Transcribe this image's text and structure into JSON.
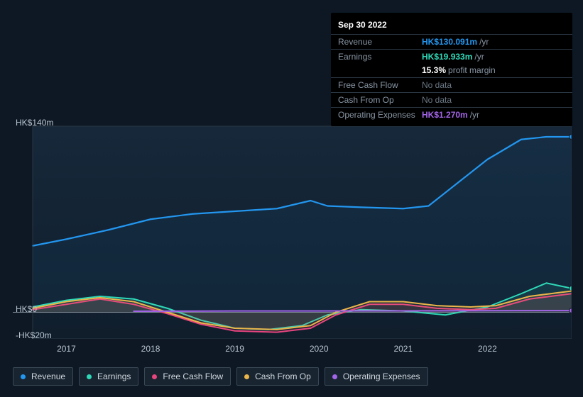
{
  "tooltip": {
    "date": "Sep 30 2022",
    "rows": [
      {
        "label": "Revenue",
        "value": "HK$130.091m",
        "unit": "/yr",
        "color": "#2396ef",
        "nodata": false
      },
      {
        "label": "Earnings",
        "value": "HK$19.933m",
        "unit": "/yr",
        "color": "#2fd9b8",
        "nodata": false,
        "sub_pct": "15.3%",
        "sub_txt": "profit margin"
      },
      {
        "label": "Free Cash Flow",
        "value": "No data",
        "unit": "",
        "color": "#8896a4",
        "nodata": true
      },
      {
        "label": "Cash From Op",
        "value": "No data",
        "unit": "",
        "color": "#8896a4",
        "nodata": true
      },
      {
        "label": "Operating Expenses",
        "value": "HK$1.270m",
        "unit": "/yr",
        "color": "#a365e8",
        "nodata": false
      }
    ]
  },
  "chart": {
    "type": "area-line",
    "background": "#0d1824",
    "plot_fill_top": "#16283a",
    "plot_fill_bottom": "#101e2c",
    "grid_color": "#2a3642",
    "axis_color": "#b8c4d0",
    "y_axis": {
      "min": -20,
      "max": 140,
      "ticks": [
        {
          "v": 140,
          "label": "HK$140m"
        },
        {
          "v": 0,
          "label": "HK$0"
        },
        {
          "v": -20,
          "label": "-HK$20m"
        }
      ]
    },
    "x_axis": {
      "start": 2016.6,
      "end": 2023.0,
      "ticks": [
        {
          "v": 2017,
          "label": "2017"
        },
        {
          "v": 2018,
          "label": "2018"
        },
        {
          "v": 2019,
          "label": "2019"
        },
        {
          "v": 2020,
          "label": "2020"
        },
        {
          "v": 2021,
          "label": "2021"
        },
        {
          "v": 2022,
          "label": "2022"
        }
      ]
    },
    "series": [
      {
        "name": "Revenue",
        "color": "#2396ef",
        "fill_opacity": 0.06,
        "line_width": 2.2,
        "points": [
          [
            2016.6,
            50
          ],
          [
            2017.0,
            55
          ],
          [
            2017.5,
            62
          ],
          [
            2018.0,
            70
          ],
          [
            2018.5,
            74
          ],
          [
            2019.0,
            76
          ],
          [
            2019.5,
            78
          ],
          [
            2019.9,
            84
          ],
          [
            2020.1,
            80
          ],
          [
            2020.5,
            79
          ],
          [
            2021.0,
            78
          ],
          [
            2021.3,
            80
          ],
          [
            2021.6,
            95
          ],
          [
            2022.0,
            115
          ],
          [
            2022.4,
            130
          ],
          [
            2022.7,
            132
          ],
          [
            2023.0,
            132
          ]
        ],
        "end_marker": true
      },
      {
        "name": "Earnings",
        "color": "#2fd9b8",
        "fill_opacity": 0.1,
        "line_width": 2,
        "points": [
          [
            2016.6,
            4
          ],
          [
            2017.0,
            9
          ],
          [
            2017.4,
            12
          ],
          [
            2017.8,
            10
          ],
          [
            2018.2,
            3
          ],
          [
            2018.6,
            -6
          ],
          [
            2019.0,
            -12
          ],
          [
            2019.4,
            -13
          ],
          [
            2019.8,
            -10
          ],
          [
            2020.1,
            -2
          ],
          [
            2020.5,
            2
          ],
          [
            2021.0,
            1
          ],
          [
            2021.5,
            -2
          ],
          [
            2022.0,
            4
          ],
          [
            2022.4,
            14
          ],
          [
            2022.7,
            22
          ],
          [
            2023.0,
            18
          ]
        ],
        "end_marker": true
      },
      {
        "name": "Free Cash Flow",
        "color": "#e6457e",
        "fill_opacity": 0.1,
        "line_width": 2,
        "points": [
          [
            2016.6,
            2
          ],
          [
            2017.0,
            6
          ],
          [
            2017.4,
            10
          ],
          [
            2017.8,
            6
          ],
          [
            2018.2,
            -1
          ],
          [
            2018.6,
            -9
          ],
          [
            2019.0,
            -14
          ],
          [
            2019.5,
            -15
          ],
          [
            2019.9,
            -12
          ],
          [
            2020.2,
            -2
          ],
          [
            2020.6,
            6
          ],
          [
            2021.0,
            6
          ],
          [
            2021.4,
            3
          ],
          [
            2021.8,
            2
          ],
          [
            2022.1,
            3
          ],
          [
            2022.5,
            10
          ],
          [
            2023.0,
            14
          ]
        ],
        "end_marker": false
      },
      {
        "name": "Cash From Op",
        "color": "#eab54a",
        "fill_opacity": 0.08,
        "line_width": 2,
        "points": [
          [
            2016.6,
            3
          ],
          [
            2017.0,
            8
          ],
          [
            2017.4,
            11
          ],
          [
            2017.8,
            8
          ],
          [
            2018.2,
            0
          ],
          [
            2018.6,
            -8
          ],
          [
            2019.0,
            -12
          ],
          [
            2019.5,
            -13
          ],
          [
            2019.9,
            -10
          ],
          [
            2020.2,
            0
          ],
          [
            2020.6,
            8
          ],
          [
            2021.0,
            8
          ],
          [
            2021.4,
            5
          ],
          [
            2021.8,
            4
          ],
          [
            2022.1,
            5
          ],
          [
            2022.5,
            12
          ],
          [
            2023.0,
            16
          ]
        ],
        "end_marker": false
      },
      {
        "name": "Operating Expenses",
        "color": "#a365e8",
        "fill_opacity": 0.0,
        "line_width": 2,
        "points": [
          [
            2017.8,
            0.8
          ],
          [
            2018.5,
            0.9
          ],
          [
            2019.0,
            1.0
          ],
          [
            2020.0,
            1.0
          ],
          [
            2021.0,
            1.1
          ],
          [
            2022.0,
            1.2
          ],
          [
            2023.0,
            1.3
          ]
        ],
        "end_marker": true
      }
    ],
    "marker_line_x": 2022.75
  },
  "legend": [
    {
      "label": "Revenue",
      "color": "#2396ef"
    },
    {
      "label": "Earnings",
      "color": "#2fd9b8"
    },
    {
      "label": "Free Cash Flow",
      "color": "#e6457e"
    },
    {
      "label": "Cash From Op",
      "color": "#eab54a"
    },
    {
      "label": "Operating Expenses",
      "color": "#a365e8"
    }
  ]
}
